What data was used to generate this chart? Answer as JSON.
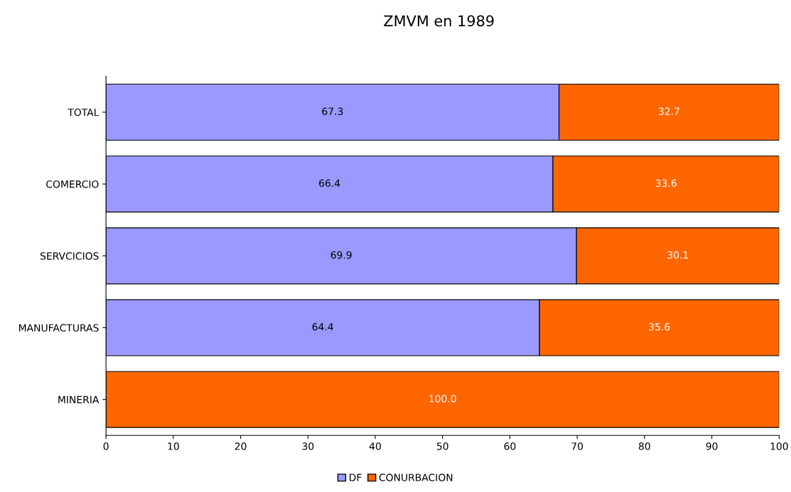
{
  "chart_data": {
    "type": "bar",
    "orientation": "horizontal",
    "stacked": true,
    "title": "ZMVM en 1989",
    "categories": [
      "TOTAL",
      "COMERCIO",
      "SERVCICIOS",
      "MANUFACTURAS",
      "MINERIA"
    ],
    "series": [
      {
        "name": "DF",
        "color": "#9999ff",
        "values": [
          67.3,
          66.4,
          69.9,
          64.4,
          null
        ],
        "value_labels": [
          "67.3",
          "66.4",
          "69.9",
          "64.4",
          null
        ]
      },
      {
        "name": "CONURBACION",
        "color": "#ff6600",
        "values": [
          32.7,
          33.6,
          30.1,
          35.6,
          100
        ],
        "value_labels": [
          "32.7",
          "33.6",
          "30.1",
          "35.6",
          "100.0"
        ]
      }
    ],
    "xlim": [
      0,
      100
    ],
    "xticks": [
      0,
      10,
      20,
      30,
      40,
      50,
      60,
      70,
      80,
      90,
      100
    ],
    "grid": false,
    "legend": "bottom"
  }
}
